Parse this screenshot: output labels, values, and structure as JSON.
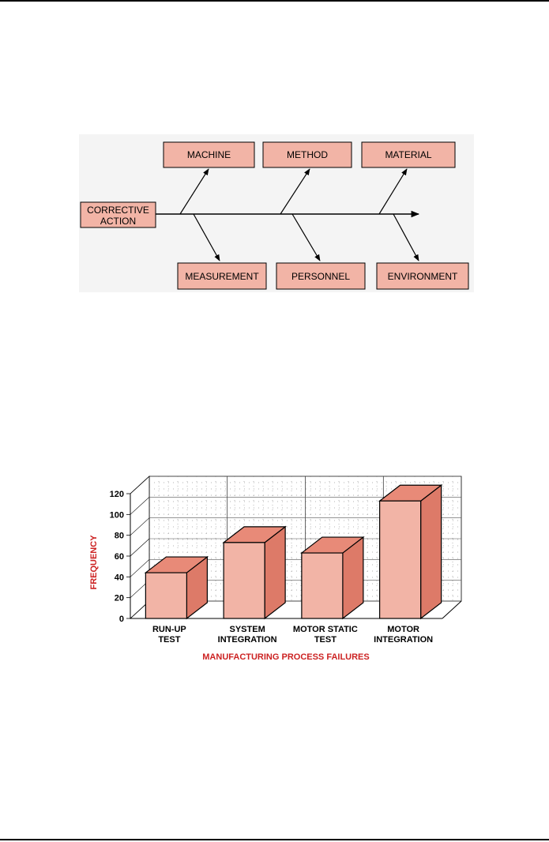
{
  "fishbone": {
    "head": [
      "CORRECTIVE",
      "ACTION"
    ],
    "top_causes": [
      "MACHINE",
      "METHOD",
      "MATERIAL"
    ],
    "bottom_causes": [
      "MEASUREMENT",
      "PERSONNEL",
      "ENVIRONMENT"
    ],
    "box_fill": "#f2b4a6"
  },
  "chart_data": {
    "type": "bar",
    "categories": [
      [
        "RUN-UP",
        "TEST"
      ],
      [
        "SYSTEM",
        "INTEGRATION"
      ],
      [
        "MOTOR STATIC",
        "TEST"
      ],
      [
        "MOTOR",
        "INTEGRATION"
      ]
    ],
    "values": [
      44,
      73,
      63,
      113
    ],
    "xlabel": "MANUFACTURING PROCESS FAILURES",
    "ylabel": "FREQUENCY",
    "ylim": [
      0,
      120
    ],
    "yticks": [
      0,
      20,
      40,
      60,
      80,
      100,
      120
    ],
    "grid": true,
    "colors": {
      "front": "#f2b4a6",
      "top": "#e88a78",
      "side": "#dd7a68",
      "label": "#cc2222"
    }
  }
}
